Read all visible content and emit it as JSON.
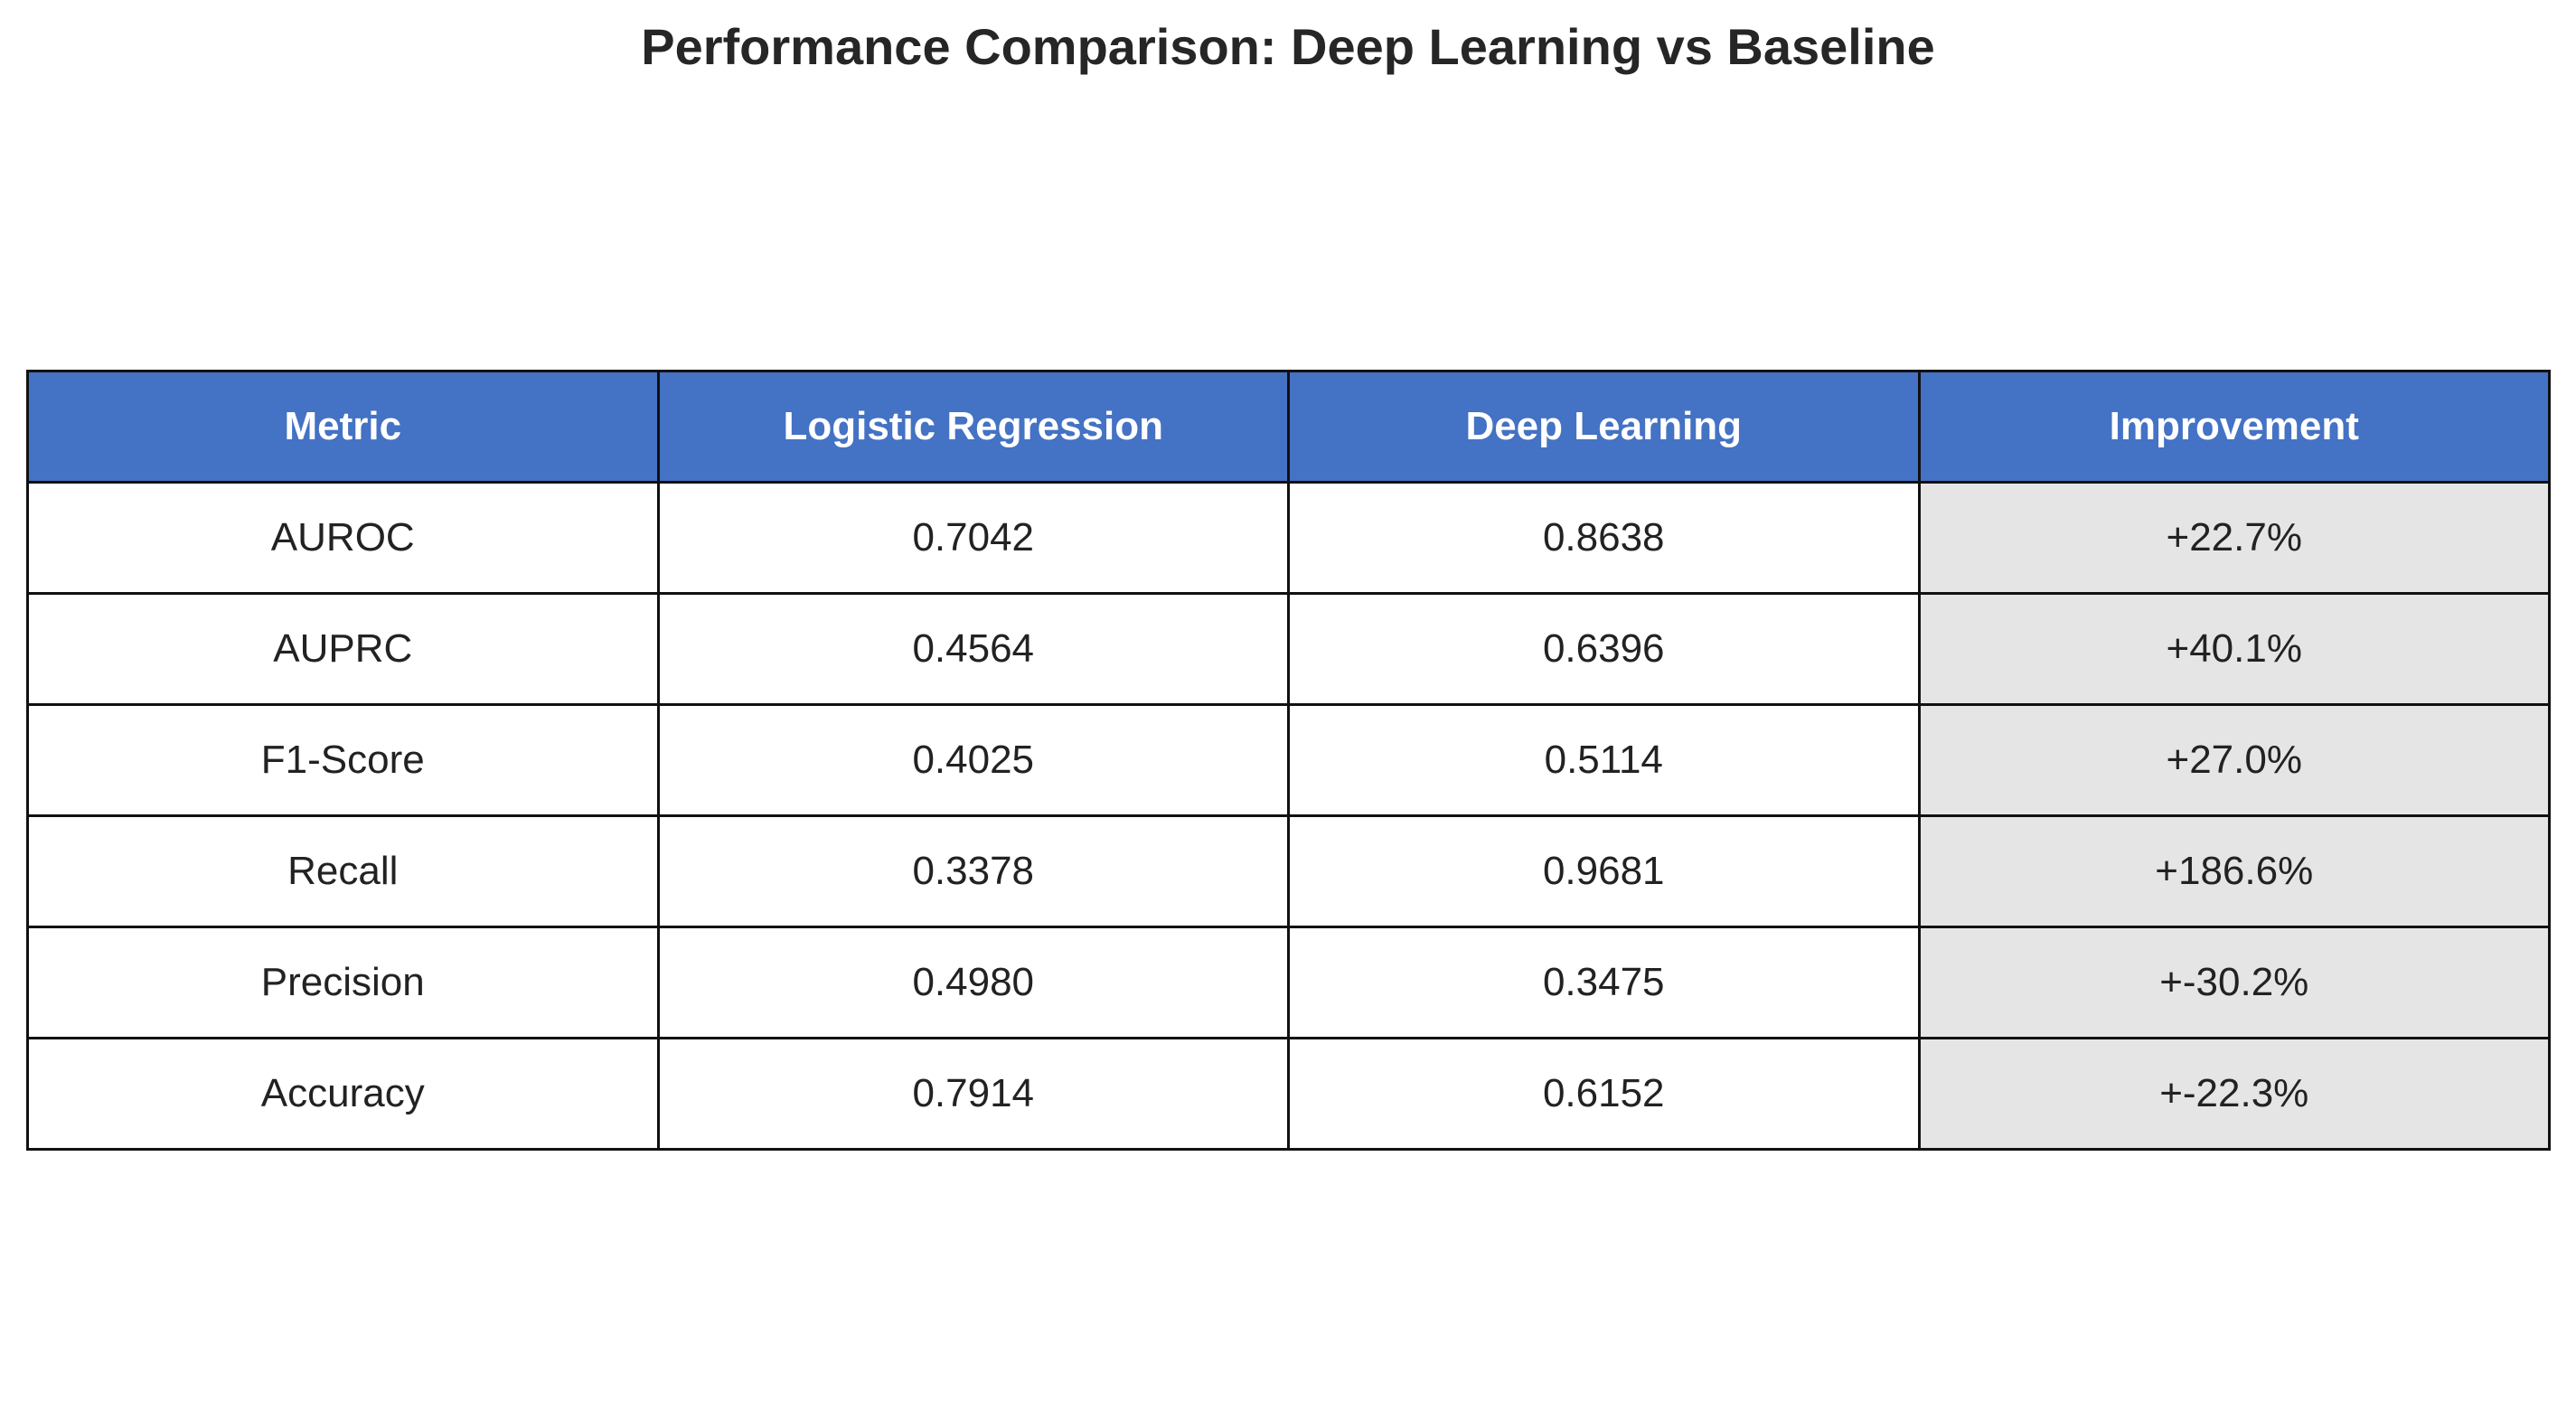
{
  "chart_data": {
    "type": "table",
    "title": "Performance Comparison: Deep Learning vs Baseline",
    "columns": [
      "Metric",
      "Logistic Regression",
      "Deep Learning",
      "Improvement"
    ],
    "rows": [
      [
        "AUROC",
        "0.7042",
        "0.8638",
        "+22.7%"
      ],
      [
        "AUPRC",
        "0.4564",
        "0.6396",
        "+40.1%"
      ],
      [
        "F1-Score",
        "0.4025",
        "0.5114",
        "+27.0%"
      ],
      [
        "Recall",
        "0.3378",
        "0.9681",
        "+186.6%"
      ],
      [
        "Precision",
        "0.4980",
        "0.3475",
        "+-30.2%"
      ],
      [
        "Accuracy",
        "0.7914",
        "0.6152",
        "+-22.3%"
      ]
    ],
    "colors": {
      "header_background": "#4472c4",
      "header_text": "#ffffff",
      "improvement_background": "#e5e5e5",
      "border": "#111111"
    }
  }
}
